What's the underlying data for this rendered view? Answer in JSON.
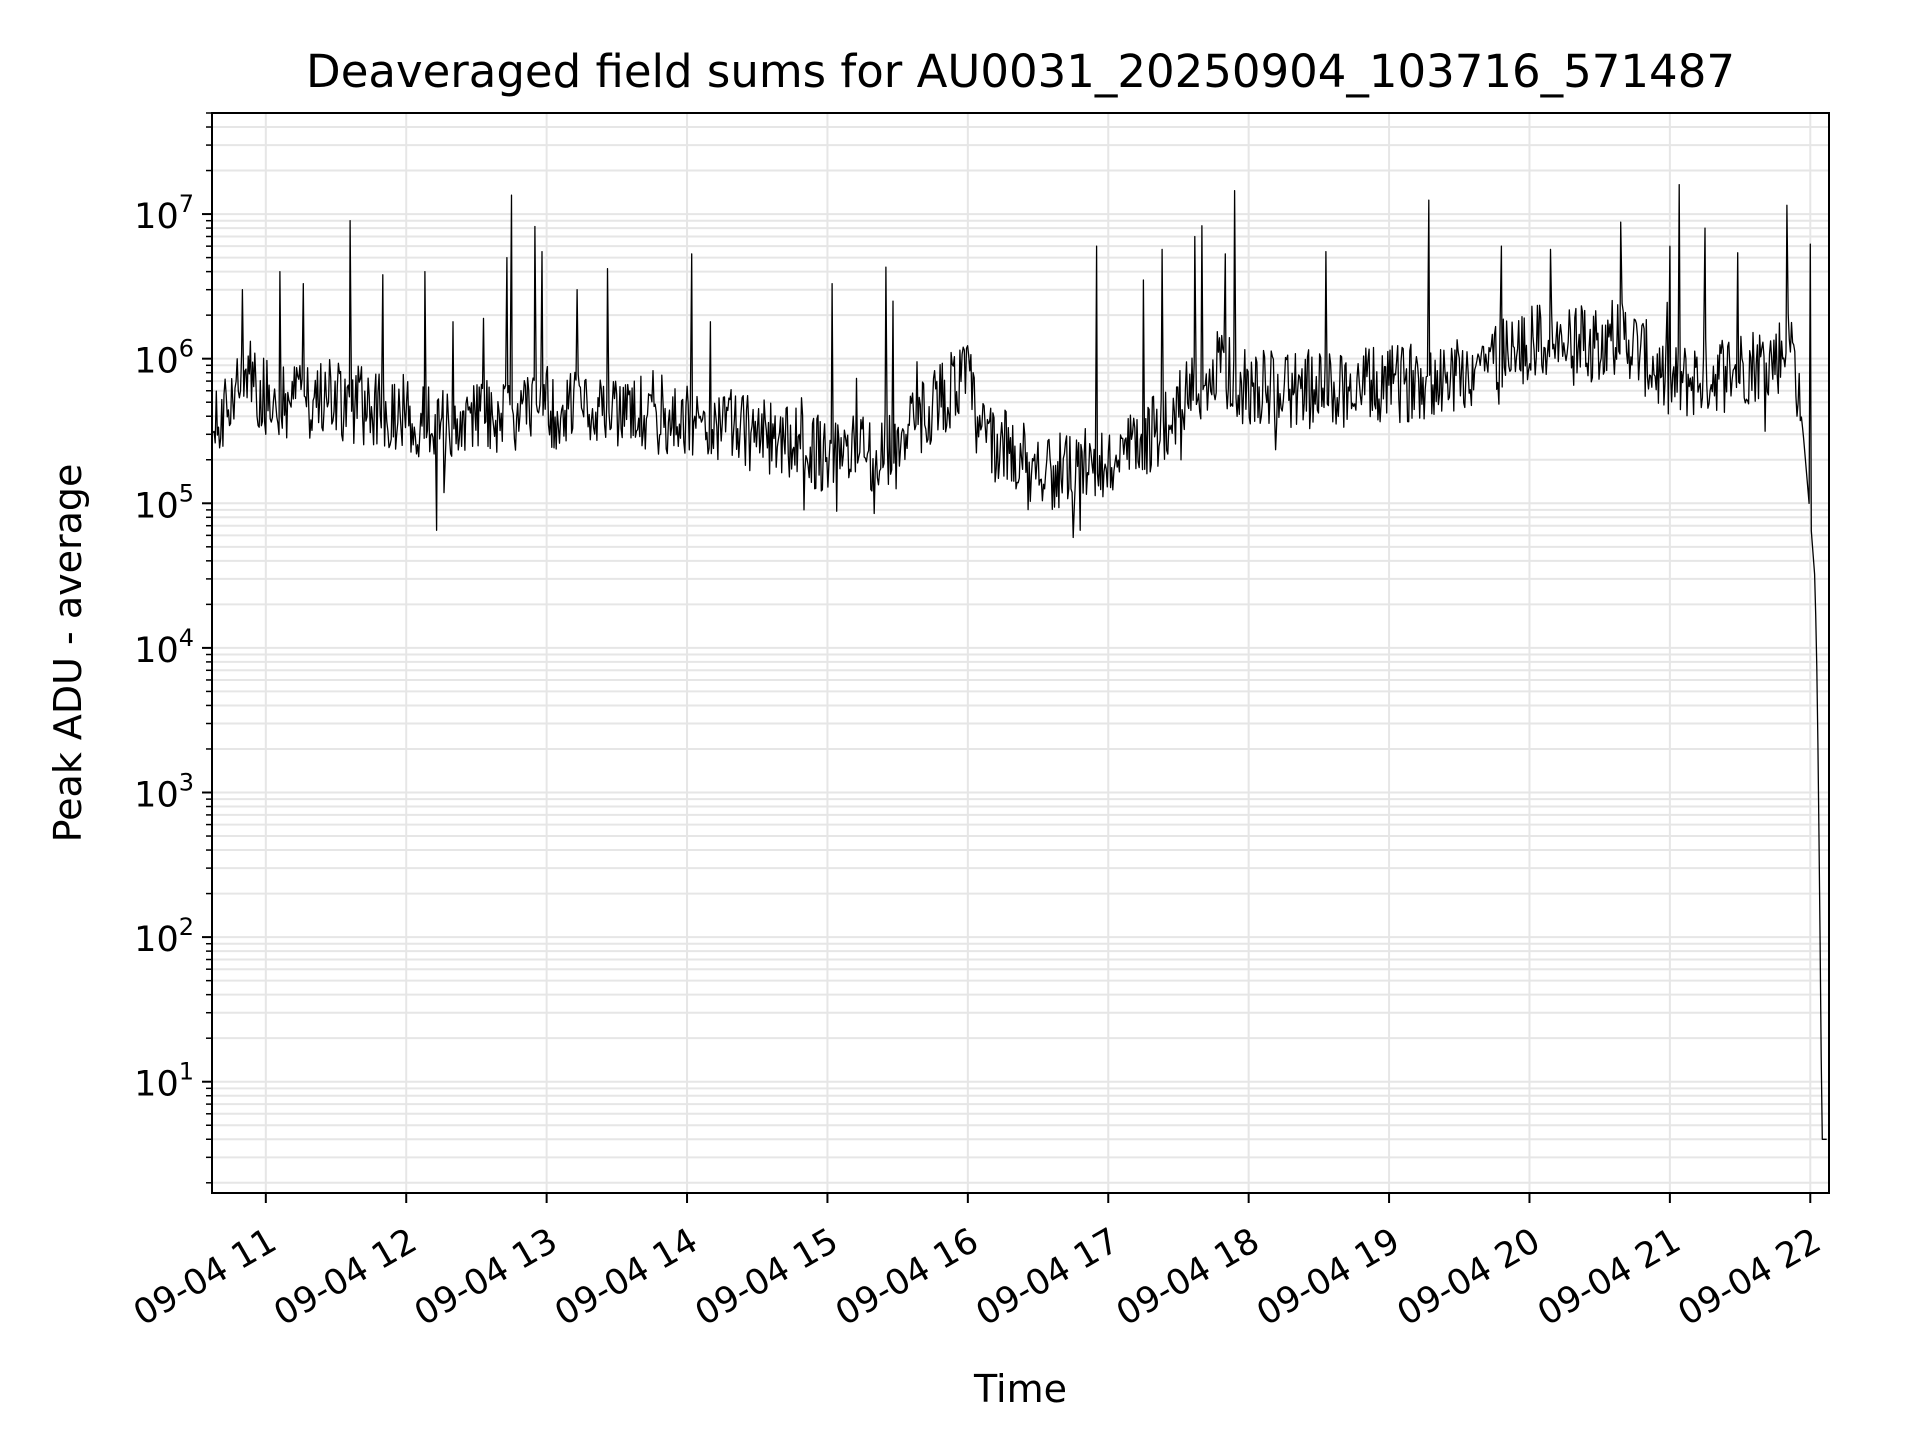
{
  "chart_data": {
    "type": "line",
    "title": "Deaveraged field sums for AU0031_20250904_103716_571487",
    "xlabel": "Time",
    "ylabel": "Peak ADU - average",
    "yscale": "log",
    "ylim": [
      1.7,
      50000000
    ],
    "xlim": [
      "2025-09-04T10:37:00",
      "2025-09-04T22:08:00"
    ],
    "grid": true,
    "x_ticks": [
      {
        "value": "2025-09-04T11:00",
        "label": "09-04 11"
      },
      {
        "value": "2025-09-04T12:00",
        "label": "09-04 12"
      },
      {
        "value": "2025-09-04T13:00",
        "label": "09-04 13"
      },
      {
        "value": "2025-09-04T14:00",
        "label": "09-04 14"
      },
      {
        "value": "2025-09-04T15:00",
        "label": "09-04 15"
      },
      {
        "value": "2025-09-04T16:00",
        "label": "09-04 16"
      },
      {
        "value": "2025-09-04T17:00",
        "label": "09-04 17"
      },
      {
        "value": "2025-09-04T18:00",
        "label": "09-04 18"
      },
      {
        "value": "2025-09-04T19:00",
        "label": "09-04 19"
      },
      {
        "value": "2025-09-04T20:00",
        "label": "09-04 20"
      },
      {
        "value": "2025-09-04T21:00",
        "label": "09-04 21"
      },
      {
        "value": "2025-09-04T22:00",
        "label": "09-04 22"
      }
    ],
    "y_ticks": [
      {
        "value": 10,
        "base": "10",
        "exp": "1"
      },
      {
        "value": 100,
        "base": "10",
        "exp": "2"
      },
      {
        "value": 1000,
        "base": "10",
        "exp": "3"
      },
      {
        "value": 10000,
        "base": "10",
        "exp": "4"
      },
      {
        "value": 100000,
        "base": "10",
        "exp": "5"
      },
      {
        "value": 1000000,
        "base": "10",
        "exp": "6"
      },
      {
        "value": 10000000,
        "base": "10",
        "exp": "7"
      }
    ],
    "line_color": "#000000",
    "series": [
      {
        "baseline": [
          [
            "2025-09-04T10:37",
            450000
          ],
          [
            "2025-09-04T10:45",
            400000
          ],
          [
            "2025-09-04T10:50",
            900000
          ],
          [
            "2025-09-04T11:00",
            550000
          ],
          [
            "2025-09-04T11:30",
            500000
          ],
          [
            "2025-09-04T12:00",
            420000
          ],
          [
            "2025-09-04T12:15",
            350000
          ],
          [
            "2025-09-04T12:30",
            400000
          ],
          [
            "2025-09-04T13:00",
            420000
          ],
          [
            "2025-09-04T13:30",
            450000
          ],
          [
            "2025-09-04T14:00",
            400000
          ],
          [
            "2025-09-04T14:30",
            300000
          ],
          [
            "2025-09-04T15:00",
            220000
          ],
          [
            "2025-09-04T15:30",
            230000
          ],
          [
            "2025-09-04T15:45",
            500000
          ],
          [
            "2025-09-04T16:00",
            750000
          ],
          [
            "2025-09-04T16:05",
            300000
          ],
          [
            "2025-09-04T16:30",
            180000
          ],
          [
            "2025-09-04T16:50",
            150000
          ],
          [
            "2025-09-04T17:15",
            250000
          ],
          [
            "2025-09-04T17:35",
            600000
          ],
          [
            "2025-09-04T17:50",
            800000
          ],
          [
            "2025-09-04T18:00",
            620000
          ],
          [
            "2025-09-04T18:30",
            600000
          ],
          [
            "2025-09-04T19:00",
            650000
          ],
          [
            "2025-09-04T19:30",
            800000
          ],
          [
            "2025-09-04T20:00",
            1300000
          ],
          [
            "2025-09-04T20:20",
            1200000
          ],
          [
            "2025-09-04T20:40",
            1500000
          ],
          [
            "2025-09-04T21:00",
            650000
          ],
          [
            "2025-09-04T21:20",
            800000
          ],
          [
            "2025-09-04T21:45",
            1000000
          ],
          [
            "2025-09-04T21:52",
            1300000
          ],
          [
            "2025-09-04T21:55",
            600000
          ],
          [
            "2025-09-04T21:57",
            300000
          ],
          [
            "2025-09-04T22:00",
            80000
          ],
          [
            "2025-09-04T22:02",
            30000
          ],
          [
            "2025-09-04T22:03",
            5000
          ],
          [
            "2025-09-04T22:04",
            200
          ],
          [
            "2025-09-04T22:05",
            4
          ],
          [
            "2025-09-04T22:08",
            4
          ]
        ],
        "spikes": [
          [
            "2025-09-04T10:50",
            3000000
          ],
          [
            "2025-09-04T11:06",
            4000000
          ],
          [
            "2025-09-04T11:16",
            3300000
          ],
          [
            "2025-09-04T11:36",
            9000000
          ],
          [
            "2025-09-04T11:50",
            3800000
          ],
          [
            "2025-09-04T12:08",
            4000000
          ],
          [
            "2025-09-04T12:20",
            1800000
          ],
          [
            "2025-09-04T12:33",
            1900000
          ],
          [
            "2025-09-04T12:43",
            5000000
          ],
          [
            "2025-09-04T12:45",
            13500000
          ],
          [
            "2025-09-04T12:55",
            8200000
          ],
          [
            "2025-09-04T12:58",
            5500000
          ],
          [
            "2025-09-04T13:13",
            3000000
          ],
          [
            "2025-09-04T13:26",
            4200000
          ],
          [
            "2025-09-04T14:02",
            5300000
          ],
          [
            "2025-09-04T14:10",
            1800000
          ],
          [
            "2025-09-04T15:02",
            3300000
          ],
          [
            "2025-09-04T15:25",
            4300000
          ],
          [
            "2025-09-04T15:28",
            2500000
          ],
          [
            "2025-09-04T16:55",
            6000000
          ],
          [
            "2025-09-04T17:15",
            3500000
          ],
          [
            "2025-09-04T17:23",
            5700000
          ],
          [
            "2025-09-04T17:37",
            7000000
          ],
          [
            "2025-09-04T17:40",
            8300000
          ],
          [
            "2025-09-04T17:50",
            5300000
          ],
          [
            "2025-09-04T17:54",
            14500000
          ],
          [
            "2025-09-04T18:33",
            5500000
          ],
          [
            "2025-09-04T19:17",
            12500000
          ],
          [
            "2025-09-04T19:48",
            6000000
          ],
          [
            "2025-09-04T20:09",
            5700000
          ],
          [
            "2025-09-04T20:39",
            8800000
          ],
          [
            "2025-09-04T21:00",
            10000000
          ],
          [
            "2025-09-04T21:04",
            16000000
          ],
          [
            "2025-09-04T21:00",
            6000000
          ],
          [
            "2025-09-04T21:15",
            8000000
          ],
          [
            "2025-09-04T21:29",
            5400000
          ],
          [
            "2025-09-04T21:50",
            11500000
          ],
          [
            "2025-09-04T22:00",
            6200000
          ]
        ],
        "dips": [
          [
            "2025-09-04T12:13",
            65000
          ],
          [
            "2025-09-04T16:45",
            58000
          ],
          [
            "2025-09-04T16:48",
            65000
          ],
          [
            "2025-09-04T14:50",
            90000
          ],
          [
            "2025-09-04T15:20",
            85000
          ]
        ]
      }
    ]
  }
}
